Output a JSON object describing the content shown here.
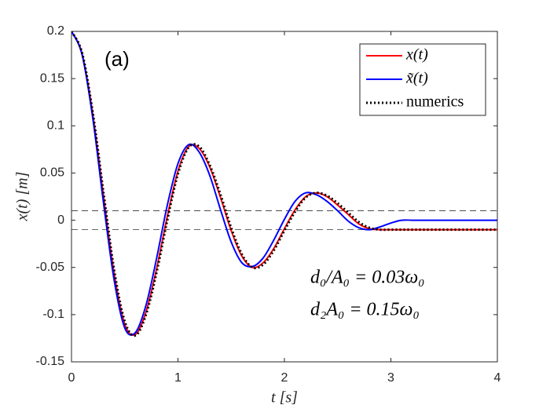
{
  "chart_data": {
    "type": "line",
    "xlabel": "t [s]",
    "ylabel": "x(t) [m]",
    "annotations": [
      "(a)",
      "d₀/A₀ = 0.03ω₀",
      "d₂A₀ = 0.15ω₀"
    ],
    "x": [
      0,
      0.1,
      0.2,
      0.3,
      0.4,
      0.5,
      0.6,
      0.7,
      0.8,
      0.9,
      1,
      1.1,
      1.2,
      1.3,
      1.4,
      1.5,
      1.6,
      1.7,
      1.8,
      1.9,
      2,
      2.1,
      2.2,
      2.3,
      2.4,
      2.5,
      2.6,
      2.7,
      2.8,
      2.9,
      3,
      3.1,
      3.2,
      3.3,
      3.4,
      3.5,
      3.6,
      3.7,
      3.8,
      3.9,
      4
    ],
    "series": [
      {
        "name": "x(t)",
        "color": "#ff0000",
        "style": "solid",
        "values": [
          0.2,
          0.176,
          0.112,
          0.026,
          -0.056,
          -0.11,
          -0.121,
          -0.097,
          -0.051,
          0.004,
          0.052,
          0.078,
          0.076,
          0.056,
          0.024,
          -0.011,
          -0.038,
          -0.05,
          -0.045,
          -0.03,
          -0.009,
          0.011,
          0.025,
          0.029,
          0.025,
          0.016,
          0.006,
          -0.004,
          -0.009,
          -0.01,
          -0.01,
          -0.01,
          -0.01,
          -0.01,
          -0.01,
          -0.01,
          -0.01,
          -0.01,
          -0.01,
          -0.01,
          -0.01
        ]
      },
      {
        "name": "x̃(t)",
        "color": "#0000ff",
        "style": "solid",
        "values": [
          0.2,
          0.175,
          0.108,
          0.019,
          -0.063,
          -0.114,
          -0.119,
          -0.09,
          -0.04,
          0.016,
          0.06,
          0.08,
          0.072,
          0.047,
          0.011,
          -0.023,
          -0.045,
          -0.049,
          -0.04,
          -0.021,
          0.001,
          0.02,
          0.029,
          0.027,
          0.02,
          0.01,
          -0.001,
          -0.008,
          -0.01,
          -0.007,
          -0.003,
          0,
          0,
          0,
          0,
          0,
          0,
          0,
          0,
          0,
          0
        ]
      },
      {
        "name": "numerics",
        "color": "#000000",
        "style": "dotted",
        "values": [
          0.2,
          0.177,
          0.114,
          0.03,
          -0.052,
          -0.107,
          -0.122,
          -0.1,
          -0.055,
          0,
          0.049,
          0.077,
          0.078,
          0.058,
          0.027,
          -0.008,
          -0.036,
          -0.05,
          -0.047,
          -0.032,
          -0.011,
          0.009,
          0.024,
          0.029,
          0.026,
          0.018,
          0.008,
          -0.002,
          -0.008,
          -0.01,
          -0.01,
          -0.01,
          -0.01,
          -0.01,
          -0.01,
          -0.01,
          -0.01,
          -0.01,
          -0.01,
          -0.01,
          -0.01
        ]
      }
    ],
    "hlines": [
      0.01,
      -0.01
    ],
    "xlim": [
      0,
      4
    ],
    "ylim": [
      -0.15,
      0.2
    ],
    "xticks": [
      0,
      1,
      2,
      3,
      4
    ],
    "yticks": [
      -0.15,
      -0.1,
      -0.05,
      0,
      0.05,
      0.1,
      0.15,
      0.2
    ],
    "legend": "upper right"
  }
}
